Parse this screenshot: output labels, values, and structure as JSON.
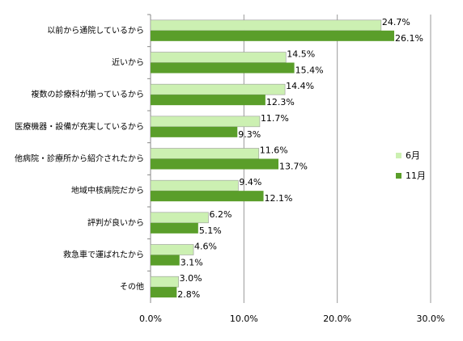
{
  "chart_data": {
    "type": "bar",
    "orientation": "horizontal",
    "categories": [
      "以前から通院しているから",
      "近いから",
      "複数の診療科が揃っているから",
      "医療機器・設備が充実しているから",
      "他病院・診療所から紹介されたから",
      "地域中核病院だから",
      "評判が良いから",
      "救急車で運ばれたから",
      "その他"
    ],
    "series": [
      {
        "name": "6月",
        "color": "#ccf0b2",
        "values": [
          24.7,
          14.5,
          14.4,
          11.7,
          11.6,
          9.4,
          6.2,
          4.6,
          3.0
        ],
        "value_labels": [
          "24.7%",
          "14.5%",
          "14.4%",
          "11.7%",
          "11.6%",
          "9.4%",
          "6.2%",
          "4.6%",
          "3.0%"
        ]
      },
      {
        "name": "11月",
        "color": "#5a9e2a",
        "values": [
          26.1,
          15.4,
          12.3,
          9.3,
          13.7,
          12.1,
          5.1,
          3.1,
          2.8
        ],
        "value_labels": [
          "26.1%",
          "15.4%",
          "12.3%",
          "9.3%",
          "13.7%",
          "12.1%",
          "5.1%",
          "3.1%",
          "2.8%"
        ]
      }
    ],
    "xlim": [
      0,
      30
    ],
    "xticks": [
      {
        "value": 0,
        "label": "0.0%"
      },
      {
        "value": 10,
        "label": "10.0%"
      },
      {
        "value": 20,
        "label": "20.0%"
      },
      {
        "value": 30,
        "label": "30.0%"
      }
    ],
    "grid": true,
    "legend": "right"
  }
}
